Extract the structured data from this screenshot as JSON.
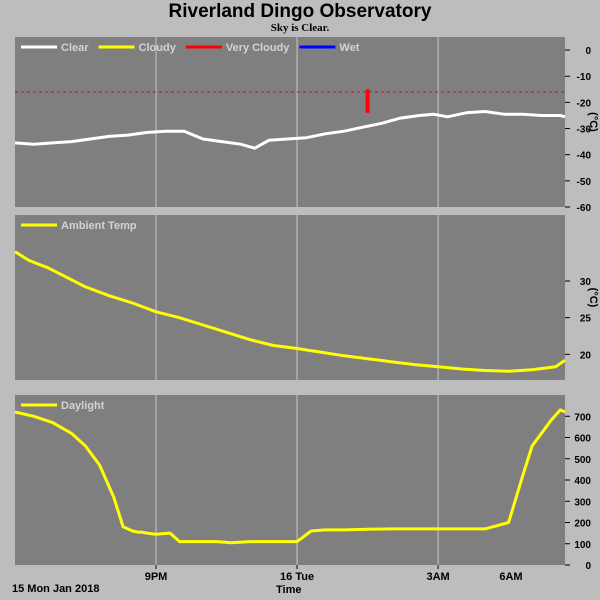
{
  "header": {
    "title": "Riverland Dingo Observatory",
    "subtitle": "Sky is Clear."
  },
  "footer": {
    "date_label": "15 Mon Jan 2018",
    "xlabel": "Time"
  },
  "colors": {
    "panel_bg": "#7f7f7f",
    "page_bg": "#bdbdbd",
    "grid": "#c8c8c8",
    "clear": "#ffffff",
    "cloudy": "#ffff00",
    "very_cloudy": "#ff0000",
    "wet": "#0000ff",
    "ambient": "#ffff00",
    "daylight": "#ffff00"
  },
  "chart_data": [
    {
      "type": "line",
      "panel": "sky",
      "ylabel": "(°C)",
      "ylim": [
        -60,
        5
      ],
      "yticks": [
        0,
        -10,
        -20,
        -30,
        -40,
        -50,
        -60
      ],
      "xlim_hours": [
        18.0,
        29.7
      ],
      "xticks": [
        {
          "hour": 21,
          "label": "9PM"
        },
        {
          "hour": 24,
          "label": "16 Tue"
        },
        {
          "hour": 27,
          "label": "3AM"
        },
        {
          "hour": 30,
          "label": "6AM"
        }
      ],
      "legend": [
        {
          "name": "Clear",
          "color": "#ffffff"
        },
        {
          "name": "Cloudy",
          "color": "#ffff00"
        },
        {
          "name": "Very Cloudy",
          "color": "#ff0000"
        },
        {
          "name": "Wet",
          "color": "#0000ff"
        }
      ],
      "threshold_lines": [
        {
          "y": -16,
          "color": "#ff0000",
          "style": "dashed"
        }
      ],
      "series": [
        {
          "name": "Clear",
          "color": "#ffffff",
          "x": [
            18.0,
            18.4,
            18.8,
            19.2,
            19.6,
            20.0,
            20.4,
            20.8,
            21.2,
            21.6,
            22.0,
            22.4,
            22.8,
            23.1,
            23.4,
            23.8,
            24.2,
            24.6,
            25.0,
            25.4,
            25.8,
            26.2,
            26.6,
            26.9,
            27.2,
            27.6,
            28.0,
            28.4,
            28.8,
            29.2,
            29.6,
            29.7
          ],
          "y": [
            -35.5,
            -36,
            -35.5,
            -35,
            -34,
            -33,
            -32.5,
            -31.5,
            -31,
            -31,
            -34,
            -35,
            -36,
            -37.5,
            -34.5,
            -34,
            -33.5,
            -32,
            -31,
            -29.5,
            -28,
            -26,
            -25,
            -24.5,
            -25.5,
            -24,
            -23.5,
            -24.5,
            -24.5,
            -25,
            -25,
            -25.5
          ]
        },
        {
          "name": "Very Cloudy",
          "color": "#ff0000",
          "x": [
            25.5,
            25.5
          ],
          "y": [
            -15,
            -24
          ]
        }
      ]
    },
    {
      "type": "line",
      "panel": "ambient",
      "ylabel": "(°C)",
      "ylim": [
        16.5,
        39
      ],
      "yticks": [
        20,
        25,
        30
      ],
      "xlim_hours": [
        18.0,
        29.7
      ],
      "legend": [
        {
          "name": "Ambient Temp",
          "color": "#ffff00"
        }
      ],
      "series": [
        {
          "name": "Ambient Temp",
          "color": "#ffff00",
          "x": [
            18.0,
            18.3,
            18.7,
            19.1,
            19.5,
            20.0,
            20.5,
            21.0,
            21.5,
            22.0,
            22.5,
            23.0,
            23.5,
            24.0,
            24.5,
            25.0,
            25.5,
            26.0,
            26.5,
            27.0,
            27.5,
            28.0,
            28.5,
            29.0,
            29.5,
            29.7
          ],
          "y": [
            34,
            32.8,
            31.8,
            30.5,
            29.2,
            28,
            27,
            25.8,
            25,
            24,
            23,
            22,
            21.2,
            20.8,
            20.3,
            19.8,
            19.4,
            19,
            18.6,
            18.3,
            18.0,
            17.8,
            17.7,
            17.9,
            18.3,
            19.2
          ]
        }
      ]
    },
    {
      "type": "line",
      "panel": "daylight",
      "ylabel": "",
      "ylim": [
        0,
        800
      ],
      "yticks": [
        0,
        100,
        200,
        300,
        400,
        500,
        600,
        700
      ],
      "xlim_hours": [
        18.0,
        29.7
      ],
      "legend": [
        {
          "name": "Daylight",
          "color": "#ffff00"
        }
      ],
      "series": [
        {
          "name": "Daylight",
          "color": "#ffff00",
          "x": [
            18.0,
            18.4,
            18.8,
            19.2,
            19.5,
            19.8,
            20.1,
            20.3,
            20.5,
            20.6,
            20.7,
            20.8,
            21.0,
            21.3,
            21.5,
            21.8,
            22.0,
            22.3,
            22.6,
            23.0,
            23.5,
            24.0,
            24.3,
            24.6,
            25.0,
            25.5,
            26.0,
            26.5,
            27.0,
            27.5,
            28.0,
            28.5,
            28.8,
            29.0,
            29.2,
            29.4,
            29.6,
            29.7
          ],
          "y": [
            720,
            700,
            670,
            620,
            560,
            470,
            320,
            180,
            160,
            155,
            155,
            150,
            145,
            150,
            110,
            110,
            110,
            110,
            105,
            110,
            110,
            110,
            160,
            165,
            165,
            168,
            170,
            170,
            170,
            170,
            170,
            200,
            420,
            560,
            620,
            680,
            730,
            720
          ]
        }
      ]
    }
  ]
}
